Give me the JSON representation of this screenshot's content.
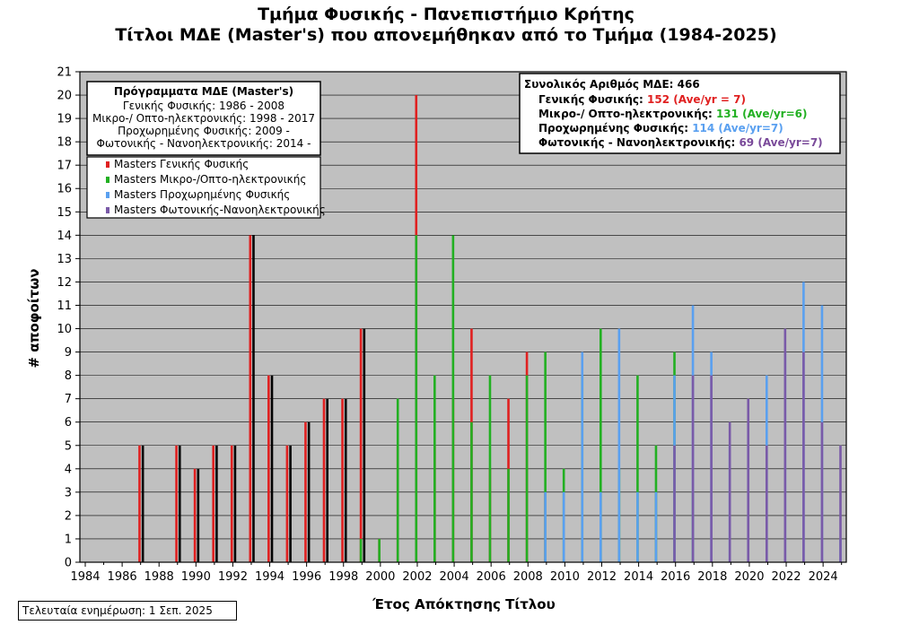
{
  "title_line1": "Τμήμα Φυσικής - Πανεπιστήμιο Κρήτης",
  "title_line2": "Τίτλοι ΜΔΕ (Master's) που απονεμήθηκαν από το Τμήμα (1984-2025)",
  "footer": "Τελευταία ενημέρωση: 1 Σεπ. 2025",
  "programs_box": {
    "title": "Πρόγραμματα ΜΔΕ (Master's)",
    "lines": [
      "Γενικής Φυσικής: 1986 - 2008",
      "Μικρο-/ Οπτο-ηλεκτρονικής: 1998 - 2017",
      "Προχωρημένης Φυσικής: 2009 -",
      "Φωτονικής - Νανοηλεκτρονικής: 2014 -"
    ]
  },
  "totals_box": {
    "title": "Συνολικός Αριθμός ΜΔΕ: 466",
    "rows": [
      {
        "label": "Γενικής Φυσικής: ",
        "value": "152 (Ave/yr = 7)",
        "color": "#e02020"
      },
      {
        "label": "Μικρο-/ Οπτο-ηλεκτρονικής: ",
        "value": "131 (Ave/yr=6)",
        "color": "#22b022"
      },
      {
        "label": "Προχωρημένης Φυσικής: ",
        "value": "114 (Ave/yr=7)",
        "color": "#5aa0f0"
      },
      {
        "label": "Φωτονικής - Νανοηλεκτρονικής: ",
        "value": "69 (Ave/yr=7)",
        "color": "#7a4a9a"
      }
    ]
  },
  "chart_data": {
    "type": "bar",
    "title": "Τίτλοι ΜΔΕ (Master's) που απονεμήθηκαν από το Τμήμα (1984-2025)",
    "xlabel": "Έτος Απόκτησης Τίτλου",
    "ylabel": "# αποφοίτων",
    "xlim": [
      1984,
      2025
    ],
    "ylim": [
      0,
      21
    ],
    "x_ticks": [
      1984,
      1986,
      1988,
      1990,
      1992,
      1994,
      1996,
      1998,
      2000,
      2002,
      2004,
      2006,
      2008,
      2010,
      2012,
      2014,
      2016,
      2018,
      2020,
      2022,
      2024
    ],
    "y_ticks": [
      0,
      1,
      2,
      3,
      4,
      5,
      6,
      7,
      8,
      9,
      10,
      11,
      12,
      13,
      14,
      15,
      16,
      17,
      18,
      19,
      20,
      21
    ],
    "grid": true,
    "legend_position": "top-left",
    "total_series": {
      "name": "",
      "color": "#000000",
      "points": [
        [
          1987,
          5
        ],
        [
          1989,
          5
        ],
        [
          1990,
          4
        ],
        [
          1991,
          5
        ],
        [
          1992,
          5
        ],
        [
          1993,
          14
        ],
        [
          1994,
          8
        ],
        [
          1995,
          5
        ],
        [
          1996,
          6
        ],
        [
          1997,
          7
        ],
        [
          1998,
          7
        ],
        [
          1999,
          10
        ]
      ]
    },
    "series": [
      {
        "name": "Masters Γενικής Φυσικής",
        "color": "#e02020",
        "points": [
          [
            1987,
            5
          ],
          [
            1989,
            5
          ],
          [
            1990,
            4
          ],
          [
            1991,
            5
          ],
          [
            1992,
            5
          ],
          [
            1993,
            14
          ],
          [
            1994,
            8
          ],
          [
            1995,
            5
          ],
          [
            1996,
            6
          ],
          [
            1997,
            7
          ],
          [
            1998,
            7
          ],
          [
            1999,
            10
          ],
          [
            2000,
            1
          ],
          [
            2001,
            5
          ],
          [
            2002,
            20
          ],
          [
            2003,
            5
          ],
          [
            2004,
            7
          ],
          [
            2005,
            10
          ],
          [
            2006,
            4
          ],
          [
            2007,
            7
          ],
          [
            2008,
            9
          ],
          [
            2009,
            3
          ]
        ]
      },
      {
        "name": "Masters Μικρο-/Οπτο-ηλεκτρονικής",
        "color": "#22b022",
        "points": [
          [
            1999,
            1
          ],
          [
            2000,
            1
          ],
          [
            2001,
            7
          ],
          [
            2002,
            14
          ],
          [
            2003,
            8
          ],
          [
            2004,
            14
          ],
          [
            2005,
            6
          ],
          [
            2006,
            8
          ],
          [
            2007,
            4
          ],
          [
            2008,
            8
          ],
          [
            2009,
            9
          ],
          [
            2010,
            4
          ],
          [
            2011,
            8
          ],
          [
            2012,
            10
          ],
          [
            2013,
            4
          ],
          [
            2014,
            8
          ],
          [
            2015,
            5
          ],
          [
            2016,
            9
          ],
          [
            2017,
            3
          ]
        ]
      },
      {
        "name": "Masters Προχωρημένης Φυσικής",
        "color": "#5aa0f0",
        "points": [
          [
            2009,
            3
          ],
          [
            2010,
            3
          ],
          [
            2011,
            9
          ],
          [
            2012,
            3
          ],
          [
            2013,
            10
          ],
          [
            2014,
            3
          ],
          [
            2015,
            3
          ],
          [
            2016,
            8
          ],
          [
            2017,
            11
          ],
          [
            2018,
            9
          ],
          [
            2019,
            5
          ],
          [
            2020,
            6
          ],
          [
            2021,
            8
          ],
          [
            2022,
            9
          ],
          [
            2023,
            12
          ],
          [
            2024,
            11
          ],
          [
            2025,
            1
          ]
        ]
      },
      {
        "name": "Masters Φωτονικής-Νανοηλεκτρονικής",
        "color": "#7a5aa8",
        "points": [
          [
            2016,
            5
          ],
          [
            2017,
            8
          ],
          [
            2018,
            8
          ],
          [
            2019,
            6
          ],
          [
            2020,
            7
          ],
          [
            2021,
            5
          ],
          [
            2022,
            10
          ],
          [
            2023,
            9
          ],
          [
            2024,
            6
          ],
          [
            2025,
            5
          ]
        ]
      }
    ]
  }
}
